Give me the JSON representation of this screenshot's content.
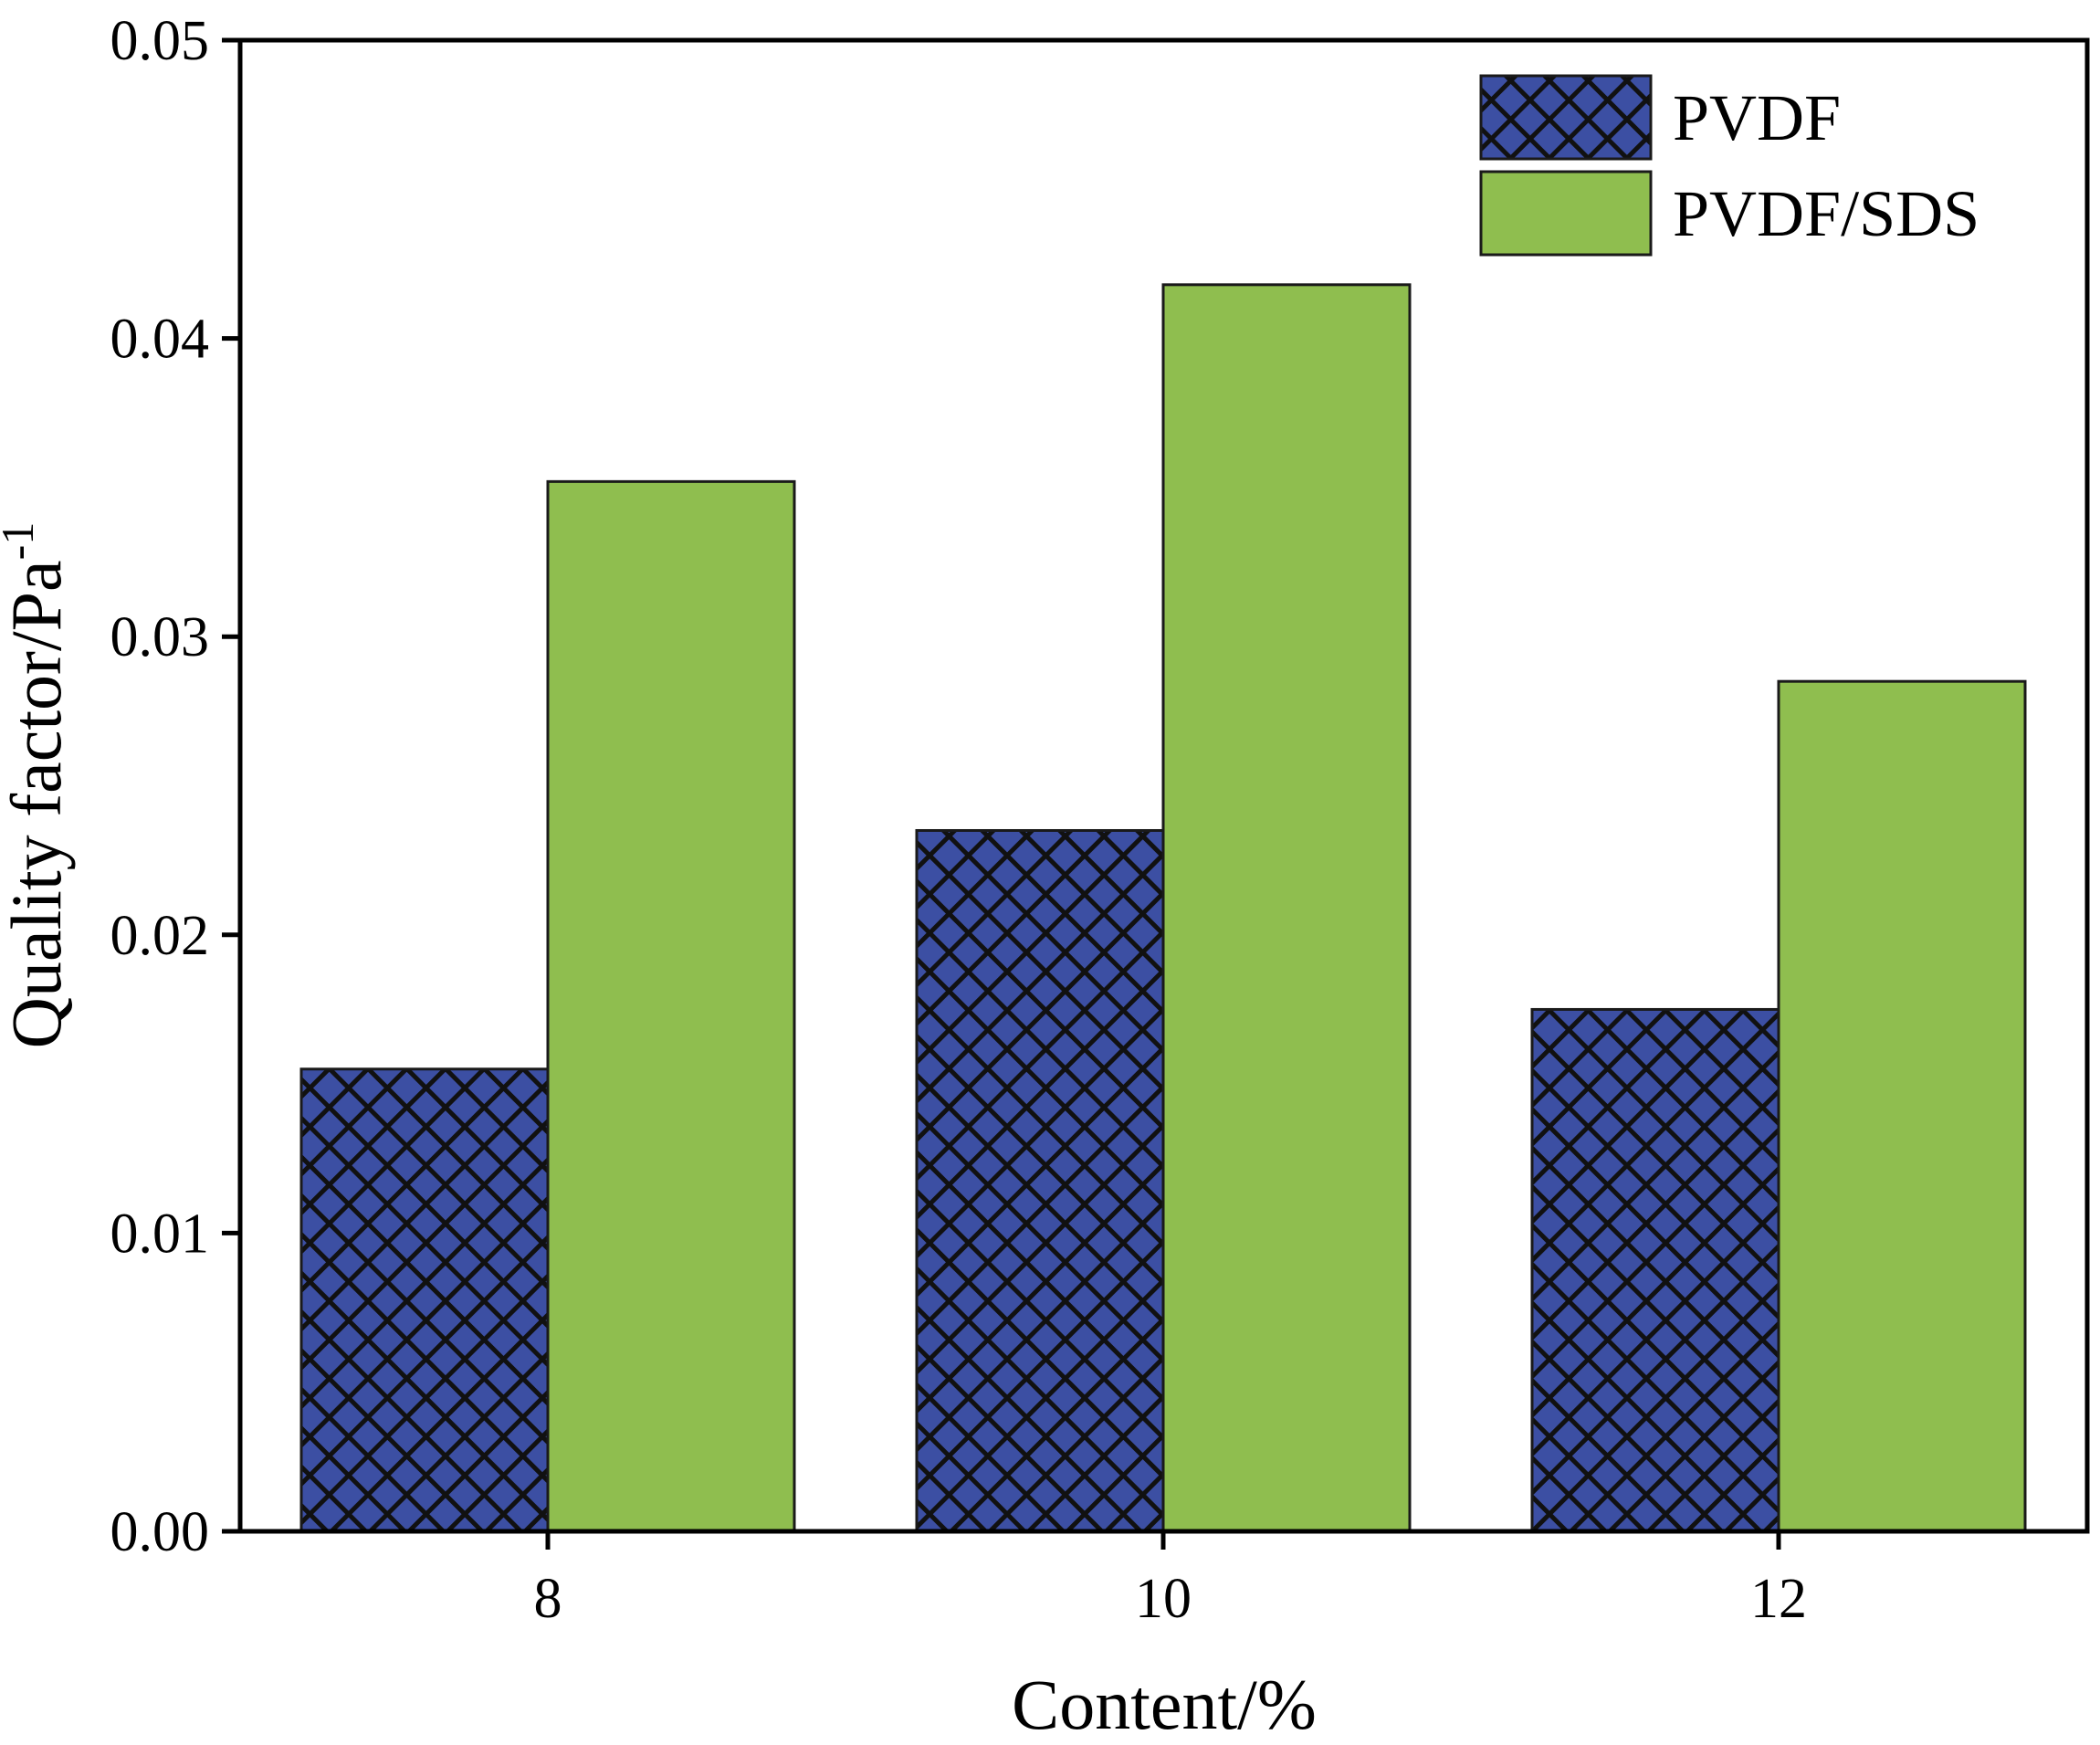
{
  "chart_data": {
    "type": "bar",
    "title": "",
    "xlabel": "Content/%",
    "ylabel": "Quality factor/Pa",
    "ylabel_superscript": "-1",
    "ylim": [
      0,
      0.05
    ],
    "yticks": [
      "0.00",
      "0.01",
      "0.02",
      "0.03",
      "0.04",
      "0.05"
    ],
    "categories": [
      "8",
      "10",
      "12"
    ],
    "series": [
      {
        "name": "PVDF",
        "values": [
          0.0155,
          0.0235,
          0.0175
        ],
        "color": "#3c4fa3",
        "pattern": "hatched"
      },
      {
        "name": "PVDF/SDS",
        "values": [
          0.0352,
          0.0418,
          0.0285
        ],
        "color": "#8fbe4f",
        "pattern": "solid"
      }
    ],
    "legend_position": "top-right",
    "grid": false
  }
}
